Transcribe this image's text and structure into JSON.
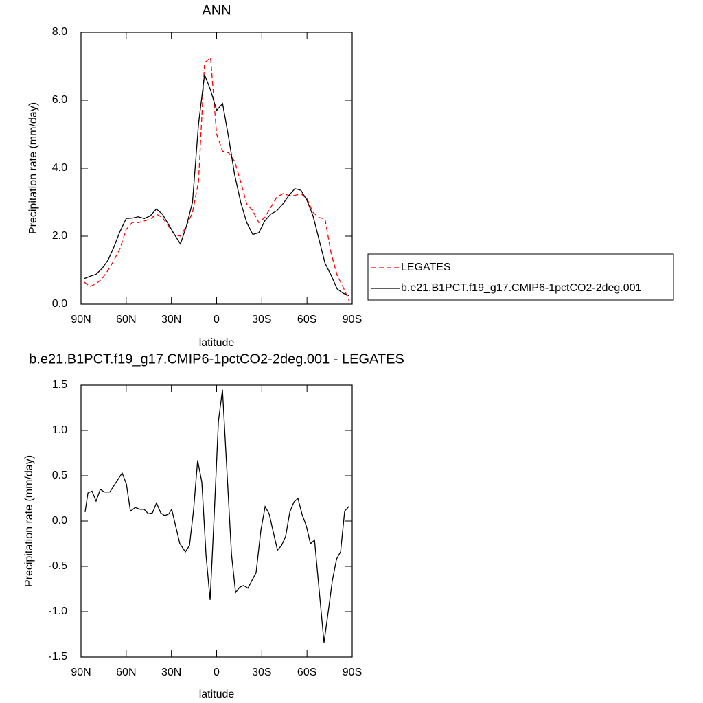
{
  "chart_data": [
    {
      "type": "line",
      "title": "ANN",
      "x_label": "latitude",
      "y_label": "Precipitation rate (mm/day)",
      "x": [
        88,
        84,
        80,
        76,
        72,
        68,
        64,
        60,
        56,
        52,
        48,
        44,
        40,
        36,
        32,
        28,
        24,
        20,
        16,
        12,
        8,
        4,
        0,
        -4,
        -8,
        -12,
        -16,
        -20,
        -24,
        -28,
        -32,
        -36,
        -40,
        -44,
        -48,
        -52,
        -56,
        -60,
        -64,
        -68,
        -72,
        -76,
        -80,
        -84,
        -88
      ],
      "series": [
        {
          "name": "LEGATES",
          "color": "#ff0000",
          "line_style": "dashed",
          "values": [
            0.65,
            0.52,
            0.6,
            0.75,
            1.0,
            1.3,
            1.65,
            2.2,
            2.4,
            2.4,
            2.45,
            2.5,
            2.65,
            2.55,
            2.3,
            2.05,
            2.0,
            2.3,
            2.7,
            3.6,
            7.1,
            7.25,
            5.0,
            4.5,
            4.45,
            4.2,
            3.6,
            2.95,
            2.75,
            2.4,
            2.55,
            2.85,
            3.15,
            3.25,
            3.2,
            3.2,
            3.25,
            3.1,
            2.7,
            2.55,
            2.5,
            1.5,
            0.85,
            0.5,
            0.1
          ]
        },
        {
          "name": "b.e21.B1PCT.f19_g17.CMIP6-1pctCO2-2deg.001",
          "color": "#000000",
          "line_style": "solid",
          "values": [
            0.75,
            0.82,
            0.88,
            1.05,
            1.3,
            1.7,
            2.15,
            2.52,
            2.53,
            2.57,
            2.52,
            2.6,
            2.8,
            2.65,
            2.35,
            2.05,
            1.77,
            2.3,
            3.0,
            5.3,
            6.75,
            6.3,
            5.7,
            5.9,
            4.9,
            3.8,
            3.0,
            2.4,
            2.05,
            2.1,
            2.45,
            2.65,
            2.75,
            2.95,
            3.2,
            3.4,
            3.35,
            3.05,
            2.6,
            1.9,
            1.2,
            0.85,
            0.45,
            0.32,
            0.25
          ]
        }
      ],
      "xlim": [
        90,
        -90
      ],
      "xticks": [
        {
          "value": 90,
          "label": "90N"
        },
        {
          "value": 60,
          "label": "60N"
        },
        {
          "value": 30,
          "label": "30N"
        },
        0,
        {
          "value": -30,
          "label": "30S"
        },
        {
          "value": -60,
          "label": "60S"
        },
        {
          "value": -90,
          "label": "90S"
        }
      ],
      "ylim": [
        0,
        8
      ],
      "yticks": [
        {
          "value": 0,
          "label": "0.0"
        },
        {
          "value": 2,
          "label": "2.0"
        },
        {
          "value": 4,
          "label": "4.0"
        },
        {
          "value": 6,
          "label": "6.0"
        },
        {
          "value": 8,
          "label": "8.0"
        }
      ],
      "legend": "right",
      "grid": false
    },
    {
      "type": "line",
      "title": "b.e21.B1PCT.f19_g17.CMIP6-1pctCO2-2deg.001 - LEGATES",
      "x_label": "latitude",
      "y_label": "Precipitation rate (mm/day)",
      "x": [
        87.3,
        85.4,
        82.7,
        80,
        77.2,
        74.5,
        70.9,
        62.7,
        59.9,
        57.2,
        54,
        50.8,
        48.1,
        45.3,
        42.6,
        39.9,
        37.1,
        34.4,
        31.7,
        29.8,
        24.4,
        20.7,
        18,
        15.3,
        12.6,
        9.8,
        7.0,
        4.3,
        1.5,
        -1.2,
        -3.9,
        -6.7,
        -9.9,
        -12.6,
        -15.3,
        -18,
        -20.8,
        -26.2,
        -29.4,
        -32.2,
        -34.9,
        -37.6,
        -40.4,
        -43.1,
        -45.8,
        -48.6,
        -51.3,
        -54,
        -56.8,
        -59.5,
        -62.3,
        -65,
        -71.3,
        -74.1,
        -76.8,
        -79.6,
        -82.3,
        -85,
        -87.8
      ],
      "series": [
        {
          "color": "#000000",
          "line_style": "solid",
          "values": [
            0.1,
            0.31,
            0.33,
            0.22,
            0.35,
            0.32,
            0.32,
            0.53,
            0.41,
            0.11,
            0.15,
            0.13,
            0.13,
            0.08,
            0.09,
            0.2,
            0.09,
            0.06,
            0.08,
            0.13,
            -0.25,
            -0.34,
            -0.27,
            0.12,
            0.67,
            0.43,
            -0.38,
            -0.87,
            0.1,
            1.1,
            1.45,
            0.6,
            -0.37,
            -0.79,
            -0.73,
            -0.71,
            -0.74,
            -0.57,
            -0.1,
            0.16,
            0.08,
            -0.12,
            -0.32,
            -0.27,
            -0.17,
            0.1,
            0.21,
            0.25,
            0.07,
            -0.05,
            -0.25,
            -0.21,
            -1.34,
            -1.0,
            -0.66,
            -0.42,
            -0.34,
            0.11,
            0.16
          ]
        }
      ],
      "xlim": [
        90,
        -90
      ],
      "xticks": [
        {
          "value": 90,
          "label": "90N"
        },
        {
          "value": 60,
          "label": "60N"
        },
        {
          "value": 30,
          "label": "30N"
        },
        0,
        {
          "value": -30,
          "label": "30S"
        },
        {
          "value": -60,
          "label": "60S"
        },
        {
          "value": -90,
          "label": "90S"
        }
      ],
      "ylim": [
        -1.5,
        1.5
      ],
      "yticks": [
        -1.5,
        {
          "value": -1,
          "label": "-1.0"
        },
        -0.5,
        {
          "value": 0,
          "label": "0.0"
        },
        0.5,
        {
          "value": 1,
          "label": "1.0"
        },
        1.5
      ],
      "grid": false
    }
  ]
}
